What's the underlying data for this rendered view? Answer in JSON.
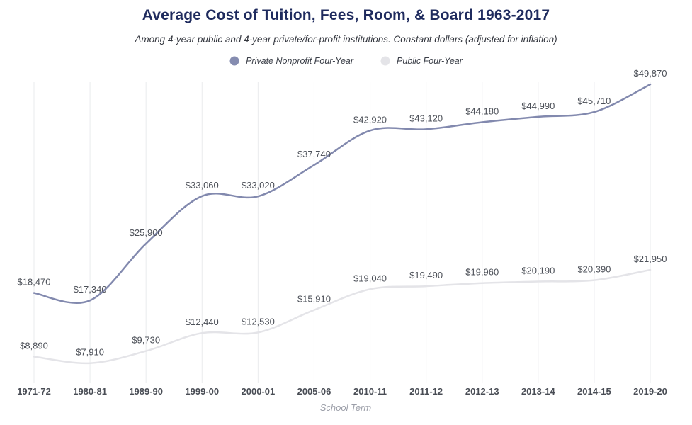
{
  "header": {
    "title": "Average Cost of Tuition, Fees, Room, & Board 1963-2017",
    "subtitle": "Among 4-year public and 4-year private/for-profit institutions. Constant dollars (adjusted for inflation)"
  },
  "legend": {
    "items": [
      {
        "label": "Private Nonprofit Four-Year",
        "color": "#858cb0"
      },
      {
        "label": "Public Four-Year",
        "color": "#e4e4e8"
      }
    ]
  },
  "chart_data": {
    "type": "line",
    "categories": [
      "1971-72",
      "1980-81",
      "1989-90",
      "1999-00",
      "2000-01",
      "2005-06",
      "2010-11",
      "2011-12",
      "2012-13",
      "2013-14",
      "2014-15",
      "2019-20"
    ],
    "series": [
      {
        "name": "Private Nonprofit Four-Year",
        "color": "#8289ae",
        "values": [
          18470,
          17340,
          25900,
          33060,
          33020,
          37740,
          42920,
          43120,
          44180,
          44990,
          45710,
          49870
        ],
        "labels": [
          "$18,470",
          "$17,340",
          "$25,900",
          "$33,060",
          "$33,020",
          "$37,740",
          "$42,920",
          "$43,120",
          "$44,180",
          "$44,990",
          "$45,710",
          "$49,870"
        ]
      },
      {
        "name": "Public Four-Year",
        "color": "#e4e4e8",
        "values": [
          8890,
          7910,
          9730,
          12440,
          12530,
          15910,
          19040,
          19490,
          19960,
          20190,
          20390,
          21950
        ],
        "labels": [
          "$8,890",
          "$7,910",
          "$9,730",
          "$12,440",
          "$12,530",
          "$15,910",
          "$19,040",
          "$19,490",
          "$19,960",
          "$20,190",
          "$20,390",
          "$21,950"
        ]
      }
    ],
    "title": "Average Cost of Tuition, Fees, Room, & Board 1963-2017",
    "xlabel": "School Term",
    "ylabel": "",
    "ylim": [
      5000,
      50200
    ],
    "grid": "vertical-only",
    "gridline_color": "#eaebed",
    "legend_position": "top",
    "label_color": "#4c5058",
    "tick_color": "#494d55"
  }
}
